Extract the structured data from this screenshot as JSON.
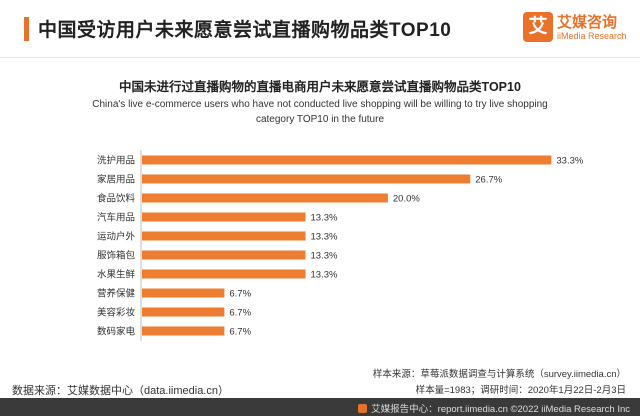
{
  "header": {
    "title": "中国受访用户未来愿意尝试直播购物品类TOP10"
  },
  "logo": {
    "mark": "艾",
    "name": "艾媒咨询",
    "sub": "iiMedia Research"
  },
  "colors": {
    "accent": "#e9712a",
    "bar": "#ed7d31",
    "footer_bg": "#3a3a3a"
  },
  "chart_data": {
    "type": "bar",
    "orientation": "horizontal",
    "title": "中国未进行过直播购物的直播电商用户未来愿意尝试直播购物品类TOP10",
    "subtitle": "China's live e-commerce users who have not conducted live shopping will be willing to try live shopping category TOP10 in the future",
    "categories": [
      "洗护用品",
      "家居用品",
      "食品饮料",
      "汽车用品",
      "运动户外",
      "服饰箱包",
      "水果生鲜",
      "营养保健",
      "美容彩妆",
      "数码家电"
    ],
    "values": [
      33.3,
      26.7,
      20.0,
      13.3,
      13.3,
      13.3,
      13.3,
      6.7,
      6.7,
      6.7
    ],
    "value_labels": [
      "33.3%",
      "26.7%",
      "20.0%",
      "13.3%",
      "13.3%",
      "13.3%",
      "13.3%",
      "6.7%",
      "6.7%",
      "6.7%"
    ],
    "xlim": [
      0,
      34
    ],
    "unit": "%",
    "grid": false,
    "legend": "none"
  },
  "notes": {
    "sample_source": "样本来源：草莓派数据调查与计算系统（survey.iimedia.cn）",
    "sample_info": "样本量=1983；调研时间：2020年1月22日-2月3日",
    "data_source": "数据来源：艾媒数据中心（data.iimedia.cn）"
  },
  "footer": {
    "text": "艾媒报告中心：report.iimedia.cn  ©2022  iiMedia Research  Inc"
  }
}
